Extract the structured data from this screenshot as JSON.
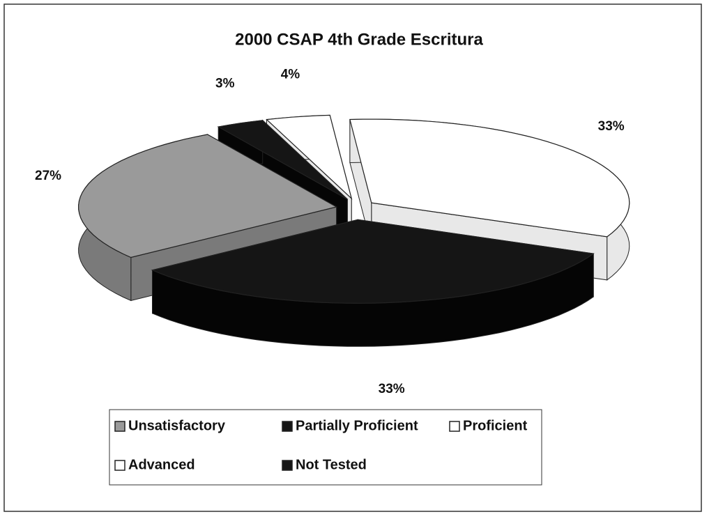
{
  "chart_data": {
    "type": "pie",
    "title": "2000 CSAP 4th Grade Escritura",
    "categories": [
      "Unsatisfactory",
      "Partially Proficient",
      "Proficient",
      "Advanced",
      "Not Tested"
    ],
    "values": [
      27,
      33,
      33,
      4,
      3
    ],
    "value_labels": [
      "27%",
      "33%",
      "33%",
      "4%",
      "3%"
    ],
    "colors": [
      "#9a9a9a",
      "#151515",
      "#ffffff",
      "#ffffff",
      "#151515"
    ],
    "legend": "bottom"
  }
}
